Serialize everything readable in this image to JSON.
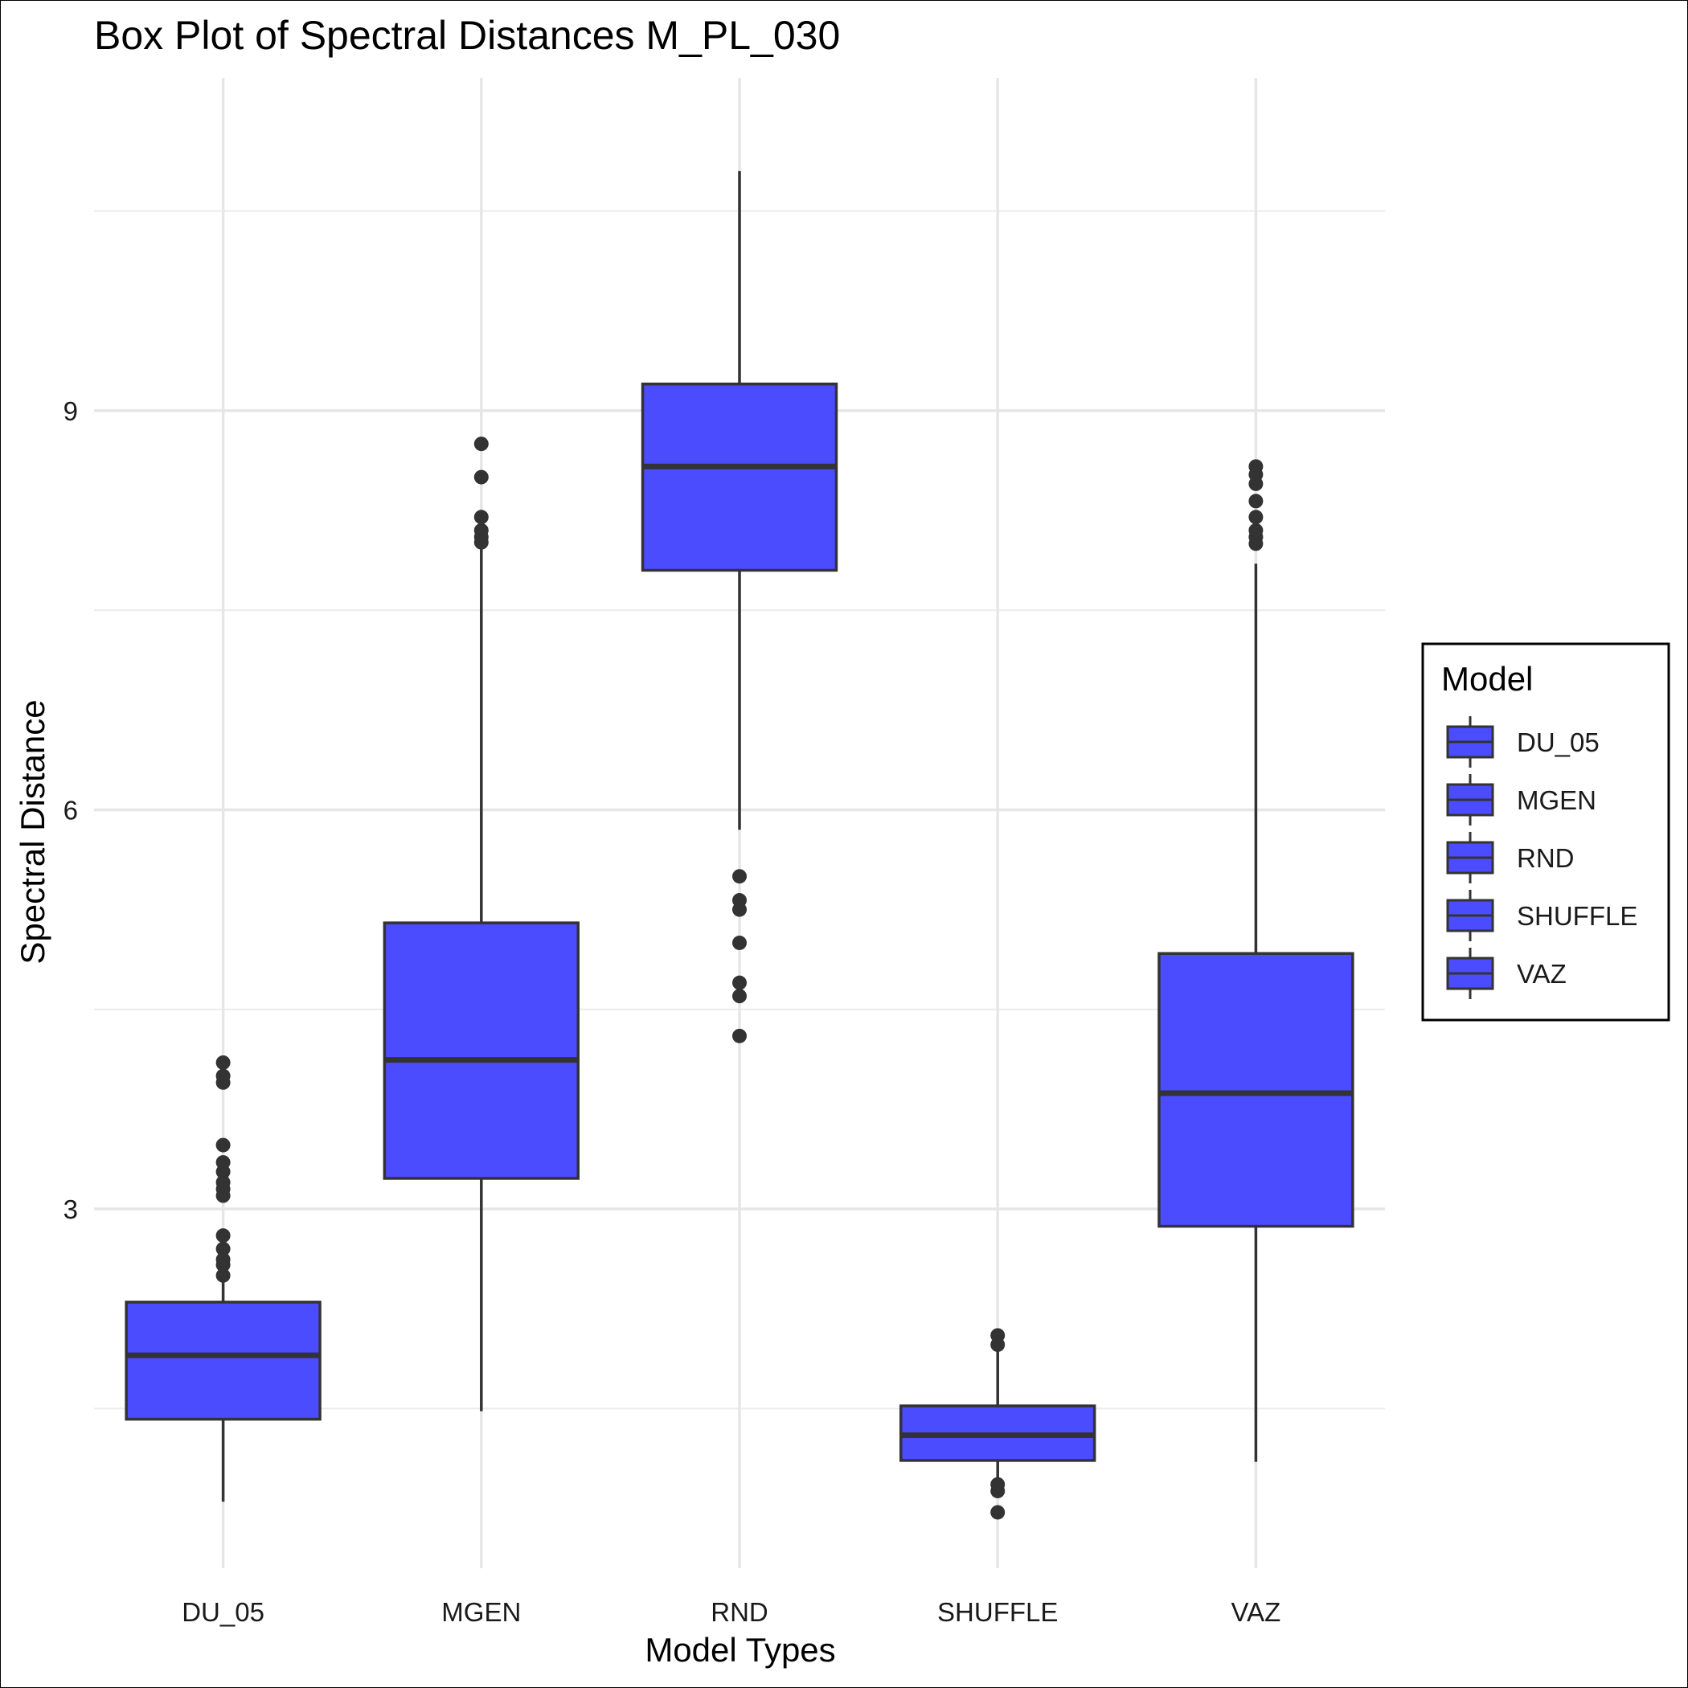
{
  "chart_data": {
    "type": "box",
    "title": "Box Plot of Spectral Distances M_PL_030",
    "xlabel": "Model Types",
    "ylabel": "Spectral Distance",
    "categories": [
      "DU_05",
      "MGEN",
      "RND",
      "SHUFFLE",
      "VAZ"
    ],
    "ylim": [
      0.3,
      11.5
    ],
    "yticks": [
      3,
      6,
      9
    ],
    "grid": true,
    "fill_color": "#4c4cff",
    "outline_color": "#333333",
    "legend": {
      "title": "Model",
      "position": "right",
      "entries": [
        "DU_05",
        "MGEN",
        "RND",
        "SHUFFLE",
        "VAZ"
      ]
    },
    "boxes": [
      {
        "name": "DU_05",
        "whisker_low": 0.8,
        "q1": 1.42,
        "median": 1.9,
        "q3": 2.3,
        "whisker_high": 2.5,
        "outliers": [
          2.5,
          2.58,
          2.62,
          2.7,
          2.8,
          3.1,
          3.15,
          3.2,
          3.28,
          3.35,
          3.48,
          3.95,
          4.0,
          4.1
        ]
      },
      {
        "name": "MGEN",
        "whisker_low": 1.48,
        "q1": 3.23,
        "median": 4.12,
        "q3": 5.15,
        "whisker_high": 7.98,
        "outliers": [
          8.01,
          8.05,
          8.1,
          8.2,
          8.5,
          8.75
        ]
      },
      {
        "name": "RND",
        "whisker_low": 5.85,
        "q1": 7.8,
        "median": 8.58,
        "q3": 9.2,
        "whisker_high": 10.8,
        "outliers": [
          4.3,
          4.6,
          4.7,
          5.0,
          5.25,
          5.32,
          5.5
        ]
      },
      {
        "name": "SHUFFLE",
        "whisker_low": 0.95,
        "q1": 1.11,
        "median": 1.3,
        "q3": 1.52,
        "whisker_high": 1.98,
        "outliers": [
          0.72,
          0.88,
          0.93,
          1.98,
          2.05
        ]
      },
      {
        "name": "VAZ",
        "whisker_low": 1.1,
        "q1": 2.87,
        "median": 3.87,
        "q3": 4.92,
        "whisker_high": 7.85,
        "outliers": [
          8.0,
          8.05,
          8.1,
          8.2,
          8.32,
          8.45,
          8.52,
          8.58
        ]
      }
    ]
  }
}
